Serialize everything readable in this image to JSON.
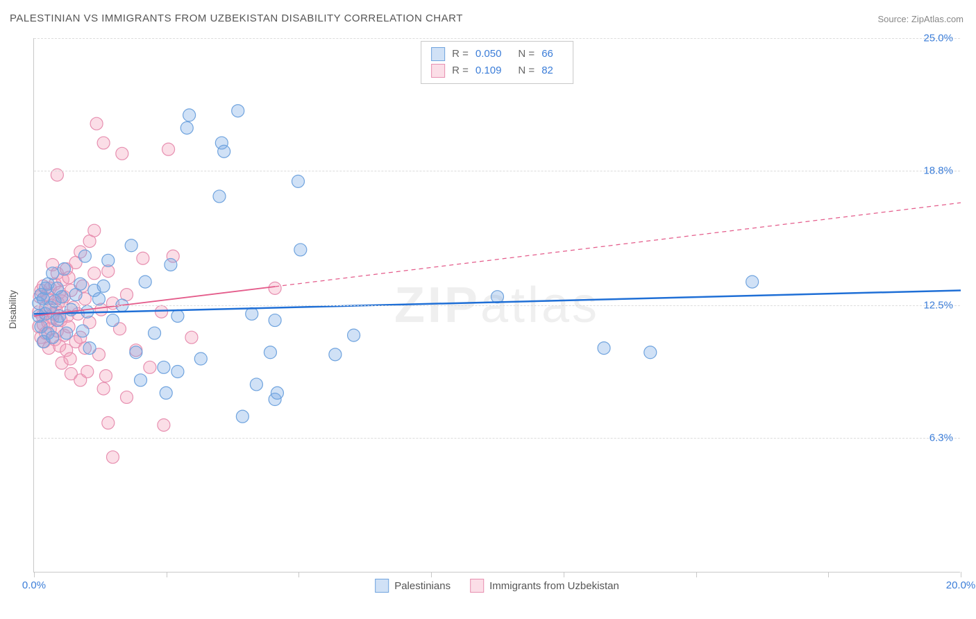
{
  "title": "PALESTINIAN VS IMMIGRANTS FROM UZBEKISTAN DISABILITY CORRELATION CHART",
  "source": "Source: ZipAtlas.com",
  "ylabel": "Disability",
  "watermark": "ZIPatlas",
  "chart": {
    "type": "scatter",
    "xlim": [
      0,
      20
    ],
    "ylim": [
      0,
      25
    ],
    "xticks": [
      0,
      2.857,
      5.714,
      8.571,
      11.429,
      14.286,
      17.143,
      20
    ],
    "xtick_labels": {
      "0": "0.0%",
      "20": "20.0%"
    },
    "yticks": [
      6.3,
      12.5,
      18.8,
      25.0
    ],
    "ytick_labels": [
      "6.3%",
      "12.5%",
      "18.8%",
      "25.0%"
    ],
    "background_color": "#ffffff",
    "grid_color": "#dcdcdc",
    "axis_color": "#c8c8c8",
    "marker_radius": 9,
    "marker_stroke_width": 1.2,
    "series": [
      {
        "name": "Palestinians",
        "fill": "rgba(120,170,228,0.35)",
        "stroke": "#6fa3de",
        "R": "0.050",
        "N": "66",
        "trend": {
          "x1": 0,
          "y1": 12.1,
          "x2": 20,
          "y2": 13.2,
          "solid_until_x": 20,
          "color": "#1f6fd6",
          "width": 2.5
        },
        "points": [
          [
            0.1,
            12.0
          ],
          [
            0.1,
            12.6
          ],
          [
            0.15,
            11.5
          ],
          [
            0.15,
            13.0
          ],
          [
            0.2,
            12.8
          ],
          [
            0.2,
            10.8
          ],
          [
            0.25,
            13.3
          ],
          [
            0.25,
            12.1
          ],
          [
            0.3,
            11.2
          ],
          [
            0.3,
            13.5
          ],
          [
            0.35,
            12.4
          ],
          [
            0.4,
            11.0
          ],
          [
            0.4,
            14.0
          ],
          [
            0.45,
            12.7
          ],
          [
            0.5,
            13.3
          ],
          [
            0.5,
            11.8
          ],
          [
            0.55,
            12.0
          ],
          [
            0.6,
            12.9
          ],
          [
            0.65,
            14.2
          ],
          [
            0.7,
            11.2
          ],
          [
            0.8,
            12.3
          ],
          [
            0.9,
            13.0
          ],
          [
            1.0,
            13.5
          ],
          [
            1.05,
            11.3
          ],
          [
            1.1,
            14.8
          ],
          [
            1.15,
            12.2
          ],
          [
            1.2,
            10.5
          ],
          [
            1.3,
            13.2
          ],
          [
            1.4,
            12.8
          ],
          [
            1.5,
            13.4
          ],
          [
            1.6,
            14.6
          ],
          [
            1.7,
            11.8
          ],
          [
            1.9,
            12.5
          ],
          [
            2.1,
            15.3
          ],
          [
            2.2,
            10.3
          ],
          [
            2.3,
            9.0
          ],
          [
            2.4,
            13.6
          ],
          [
            2.6,
            11.2
          ],
          [
            2.8,
            9.6
          ],
          [
            2.85,
            8.4
          ],
          [
            2.95,
            14.4
          ],
          [
            3.1,
            12.0
          ],
          [
            3.1,
            9.4
          ],
          [
            3.3,
            20.8
          ],
          [
            3.35,
            21.4
          ],
          [
            3.6,
            10.0
          ],
          [
            4.0,
            17.6
          ],
          [
            4.05,
            20.1
          ],
          [
            4.1,
            19.7
          ],
          [
            4.4,
            21.6
          ],
          [
            4.5,
            7.3
          ],
          [
            4.7,
            12.1
          ],
          [
            4.8,
            8.8
          ],
          [
            5.1,
            10.3
          ],
          [
            5.2,
            11.8
          ],
          [
            5.2,
            8.1
          ],
          [
            5.25,
            8.4
          ],
          [
            5.7,
            18.3
          ],
          [
            5.75,
            15.1
          ],
          [
            6.5,
            10.2
          ],
          [
            6.9,
            11.1
          ],
          [
            10.0,
            12.9
          ],
          [
            12.3,
            10.5
          ],
          [
            13.3,
            10.3
          ],
          [
            15.5,
            13.6
          ]
        ]
      },
      {
        "name": "Immigrants from Uzbekistan",
        "fill": "rgba(244,160,185,0.35)",
        "stroke": "#e78fb0",
        "R": "0.109",
        "N": "82",
        "trend": {
          "x1": 0,
          "y1": 12.0,
          "x2": 20,
          "y2": 17.3,
          "solid_until_x": 5.2,
          "color": "#e45c8b",
          "width": 1.8
        },
        "points": [
          [
            0.1,
            12.2
          ],
          [
            0.1,
            11.5
          ],
          [
            0.12,
            12.9
          ],
          [
            0.15,
            11.0
          ],
          [
            0.15,
            13.2
          ],
          [
            0.18,
            12.0
          ],
          [
            0.2,
            11.6
          ],
          [
            0.2,
            13.4
          ],
          [
            0.22,
            10.8
          ],
          [
            0.25,
            12.4
          ],
          [
            0.25,
            11.2
          ],
          [
            0.28,
            13.0
          ],
          [
            0.3,
            11.7
          ],
          [
            0.3,
            12.8
          ],
          [
            0.32,
            10.5
          ],
          [
            0.35,
            13.3
          ],
          [
            0.35,
            11.4
          ],
          [
            0.38,
            12.5
          ],
          [
            0.4,
            11.9
          ],
          [
            0.4,
            14.4
          ],
          [
            0.42,
            12.1
          ],
          [
            0.45,
            10.9
          ],
          [
            0.45,
            13.5
          ],
          [
            0.48,
            12.3
          ],
          [
            0.5,
            11.3
          ],
          [
            0.5,
            14.0
          ],
          [
            0.5,
            18.6
          ],
          [
            0.52,
            12.6
          ],
          [
            0.55,
            10.6
          ],
          [
            0.55,
            13.1
          ],
          [
            0.58,
            11.8
          ],
          [
            0.6,
            12.7
          ],
          [
            0.6,
            9.8
          ],
          [
            0.62,
            13.7
          ],
          [
            0.65,
            11.1
          ],
          [
            0.65,
            12.9
          ],
          [
            0.7,
            10.4
          ],
          [
            0.7,
            14.2
          ],
          [
            0.72,
            12.0
          ],
          [
            0.75,
            11.5
          ],
          [
            0.75,
            13.8
          ],
          [
            0.78,
            10.0
          ],
          [
            0.8,
            13.2
          ],
          [
            0.8,
            9.3
          ],
          [
            0.85,
            12.4
          ],
          [
            0.9,
            10.8
          ],
          [
            0.9,
            14.5
          ],
          [
            0.95,
            12.1
          ],
          [
            1.0,
            11.0
          ],
          [
            1.0,
            15.0
          ],
          [
            1.0,
            9.0
          ],
          [
            1.05,
            13.4
          ],
          [
            1.1,
            10.5
          ],
          [
            1.1,
            12.8
          ],
          [
            1.15,
            9.4
          ],
          [
            1.2,
            15.5
          ],
          [
            1.2,
            11.7
          ],
          [
            1.3,
            14.0
          ],
          [
            1.3,
            16.0
          ],
          [
            1.35,
            21.0
          ],
          [
            1.4,
            10.2
          ],
          [
            1.45,
            12.3
          ],
          [
            1.5,
            8.6
          ],
          [
            1.5,
            20.1
          ],
          [
            1.55,
            9.2
          ],
          [
            1.6,
            14.1
          ],
          [
            1.6,
            7.0
          ],
          [
            1.7,
            12.6
          ],
          [
            1.7,
            5.4
          ],
          [
            1.85,
            11.4
          ],
          [
            1.9,
            19.6
          ],
          [
            2.0,
            8.2
          ],
          [
            2.0,
            13.0
          ],
          [
            2.2,
            10.4
          ],
          [
            2.35,
            14.7
          ],
          [
            2.5,
            9.6
          ],
          [
            2.75,
            12.2
          ],
          [
            2.8,
            6.9
          ],
          [
            2.9,
            19.8
          ],
          [
            3.0,
            14.8
          ],
          [
            3.4,
            11.0
          ],
          [
            5.2,
            13.3
          ]
        ]
      }
    ]
  },
  "legend": {
    "label1": "Palestinians",
    "label2": "Immigrants from Uzbekistan"
  }
}
